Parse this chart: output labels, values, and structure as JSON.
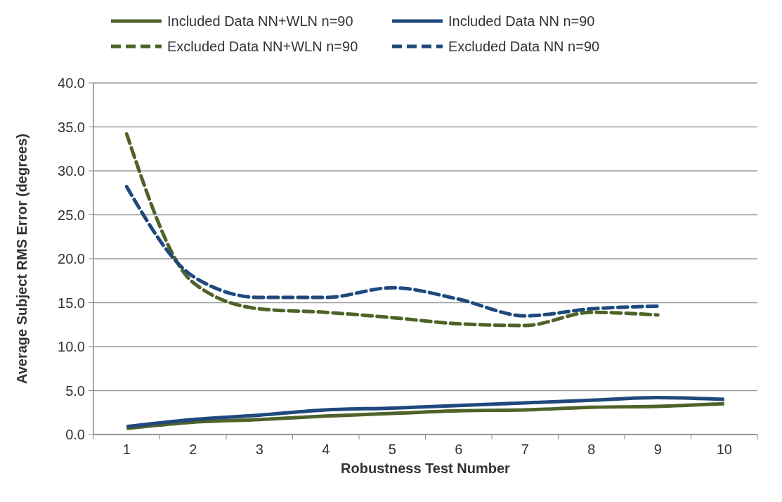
{
  "chart_data": {
    "type": "line",
    "xlabel": "Robustness Test Number",
    "ylabel": "Average Subject RMS Error (degrees)",
    "categories": [
      "1",
      "2",
      "3",
      "4",
      "5",
      "6",
      "7",
      "8",
      "9",
      "10"
    ],
    "ylim": [
      0,
      40
    ],
    "yticks": [
      {
        "value": 0,
        "label": "0.0"
      },
      {
        "value": 5,
        "label": "5.0"
      },
      {
        "value": 10,
        "label": "10.0"
      },
      {
        "value": 15,
        "label": "15.0"
      },
      {
        "value": 20,
        "label": "20.0"
      },
      {
        "value": 25,
        "label": "25.0"
      },
      {
        "value": 30,
        "label": "30.0"
      },
      {
        "value": 35,
        "label": "35.0"
      },
      {
        "value": 40,
        "label": "40.0"
      }
    ],
    "grid": "y",
    "legend": "top",
    "marker": "none",
    "series": [
      {
        "name": "Included Data NN+WLN n=90",
        "color": "#4f6228",
        "line_style": "solid",
        "values": [
          0.7,
          1.4,
          1.7,
          2.1,
          2.4,
          2.7,
          2.8,
          3.1,
          3.2,
          3.5
        ]
      },
      {
        "name": "Included Data NN n=90",
        "color": "#1f497d",
        "line_style": "solid",
        "values": [
          0.9,
          1.7,
          2.2,
          2.8,
          3.0,
          3.3,
          3.6,
          3.9,
          4.2,
          4.0
        ]
      },
      {
        "name": "Excluded Data NN+WLN n=90",
        "color": "#4f6228",
        "line_style": "dashed",
        "values": [
          34.2,
          17.3,
          14.3,
          13.9,
          13.3,
          12.6,
          12.4,
          13.9,
          13.6,
          null
        ]
      },
      {
        "name": "Excluded Data NN n=90",
        "color": "#1f497d",
        "line_style": "dashed",
        "values": [
          28.2,
          18.0,
          15.6,
          15.6,
          16.7,
          15.4,
          13.5,
          14.3,
          14.6,
          null
        ]
      }
    ]
  }
}
